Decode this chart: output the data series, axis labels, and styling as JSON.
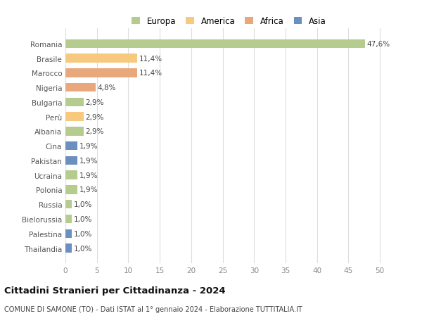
{
  "countries": [
    "Romania",
    "Brasile",
    "Marocco",
    "Nigeria",
    "Bulgaria",
    "Perù",
    "Albania",
    "Cina",
    "Pakistan",
    "Ucraina",
    "Polonia",
    "Russia",
    "Bielorussia",
    "Palestina",
    "Thailandia"
  ],
  "values": [
    47.6,
    11.4,
    11.4,
    4.8,
    2.9,
    2.9,
    2.9,
    1.9,
    1.9,
    1.9,
    1.9,
    1.0,
    1.0,
    1.0,
    1.0
  ],
  "labels": [
    "47,6%",
    "11,4%",
    "11,4%",
    "4,8%",
    "2,9%",
    "2,9%",
    "2,9%",
    "1,9%",
    "1,9%",
    "1,9%",
    "1,9%",
    "1,0%",
    "1,0%",
    "1,0%",
    "1,0%"
  ],
  "continents": [
    "Europa",
    "America",
    "Africa",
    "Africa",
    "Europa",
    "America",
    "Europa",
    "Asia",
    "Asia",
    "Europa",
    "Europa",
    "Europa",
    "Europa",
    "Asia",
    "Asia"
  ],
  "colors": {
    "Europa": "#b5cc8e",
    "America": "#f7c97e",
    "Africa": "#e8a87c",
    "Asia": "#6b8fbf"
  },
  "title": "Cittadini Stranieri per Cittadinanza - 2024",
  "subtitle": "COMUNE DI SAMONE (TO) - Dati ISTAT al 1° gennaio 2024 - Elaborazione TUTTITALIA.IT",
  "xlim": [
    0,
    52
  ],
  "xticks": [
    0,
    5,
    10,
    15,
    20,
    25,
    30,
    35,
    40,
    45,
    50
  ],
  "background_color": "#ffffff",
  "grid_color": "#dddddd",
  "bar_height": 0.6,
  "label_fontsize": 7.5,
  "tick_fontsize": 7.5,
  "ytick_fontsize": 7.5,
  "title_fontsize": 9.5,
  "subtitle_fontsize": 7.0,
  "legend_fontsize": 8.5
}
